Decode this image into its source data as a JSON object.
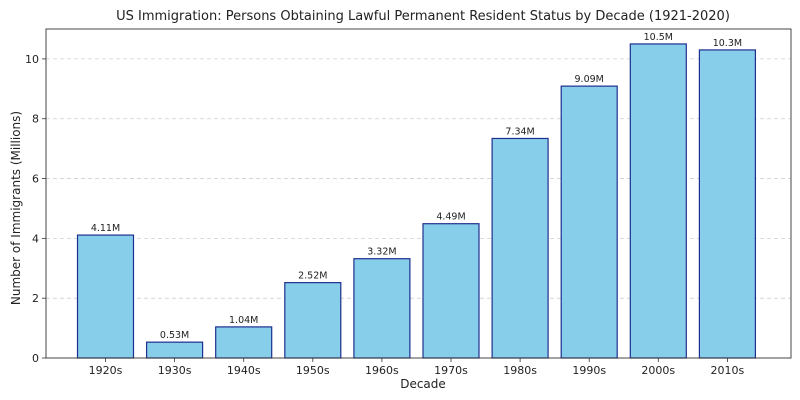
{
  "chart_data": {
    "type": "bar",
    "title": "US Immigration: Persons Obtaining Lawful Permanent Resident Status by Decade (1921-2020)",
    "xlabel": "Decade",
    "ylabel": "Number of Immigrants (Millions)",
    "categories": [
      "1920s",
      "1930s",
      "1940s",
      "1950s",
      "1960s",
      "1970s",
      "1980s",
      "1990s",
      "2000s",
      "2010s"
    ],
    "values": [
      4.11,
      0.53,
      1.04,
      2.52,
      3.32,
      4.49,
      7.34,
      9.09,
      10.5,
      10.3
    ],
    "value_labels": [
      "4.11M",
      "0.53M",
      "1.04M",
      "2.52M",
      "3.32M",
      "4.49M",
      "7.34M",
      "9.09M",
      "10.5M",
      "10.3M"
    ],
    "ylim": [
      0,
      11
    ],
    "yticks": [
      0,
      2,
      4,
      6,
      8,
      10
    ],
    "grid": "y, dashed",
    "bar_color": "#87CEEB",
    "bar_edge_color": "#1F2F8F"
  }
}
